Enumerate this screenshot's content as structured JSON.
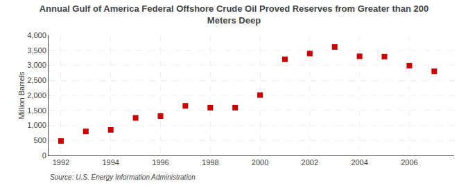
{
  "chart_data": {
    "type": "scatter",
    "title": "Annual Gulf of America Federal Offshore Crude Oil Proved Reserves from Greater than 200\nMeters Deep",
    "ylabel": "Million Barrels",
    "annotations": [
      "Source: U.S. Energy Information Administration"
    ],
    "x": [
      1992,
      1993,
      1994,
      1995,
      1996,
      1997,
      1998,
      1999,
      2000,
      2001,
      2002,
      2003,
      2004,
      2005,
      2006,
      2007
    ],
    "values": [
      480,
      800,
      850,
      1250,
      1310,
      1650,
      1590,
      1590,
      2010,
      3200,
      3390,
      3610,
      3300,
      3290,
      2990,
      2800
    ],
    "color": "#cc0000",
    "marker": "square",
    "xlim": [
      1991.5,
      2007.8
    ],
    "xticks": [
      1992,
      1994,
      1996,
      1998,
      2000,
      2002,
      2004,
      2006
    ],
    "ylim": [
      0,
      4000
    ],
    "yticks": [
      0,
      500,
      {
        "value": 1000,
        "label": "1,000"
      },
      {
        "value": 1500,
        "label": "1,500"
      },
      {
        "value": 2000,
        "label": "2,000"
      },
      {
        "value": 2500,
        "label": "2,500"
      },
      {
        "value": 3000,
        "label": "3,000"
      },
      {
        "value": 3500,
        "label": "3,500"
      },
      {
        "value": 4000,
        "label": "4,000"
      }
    ],
    "grid": true
  }
}
